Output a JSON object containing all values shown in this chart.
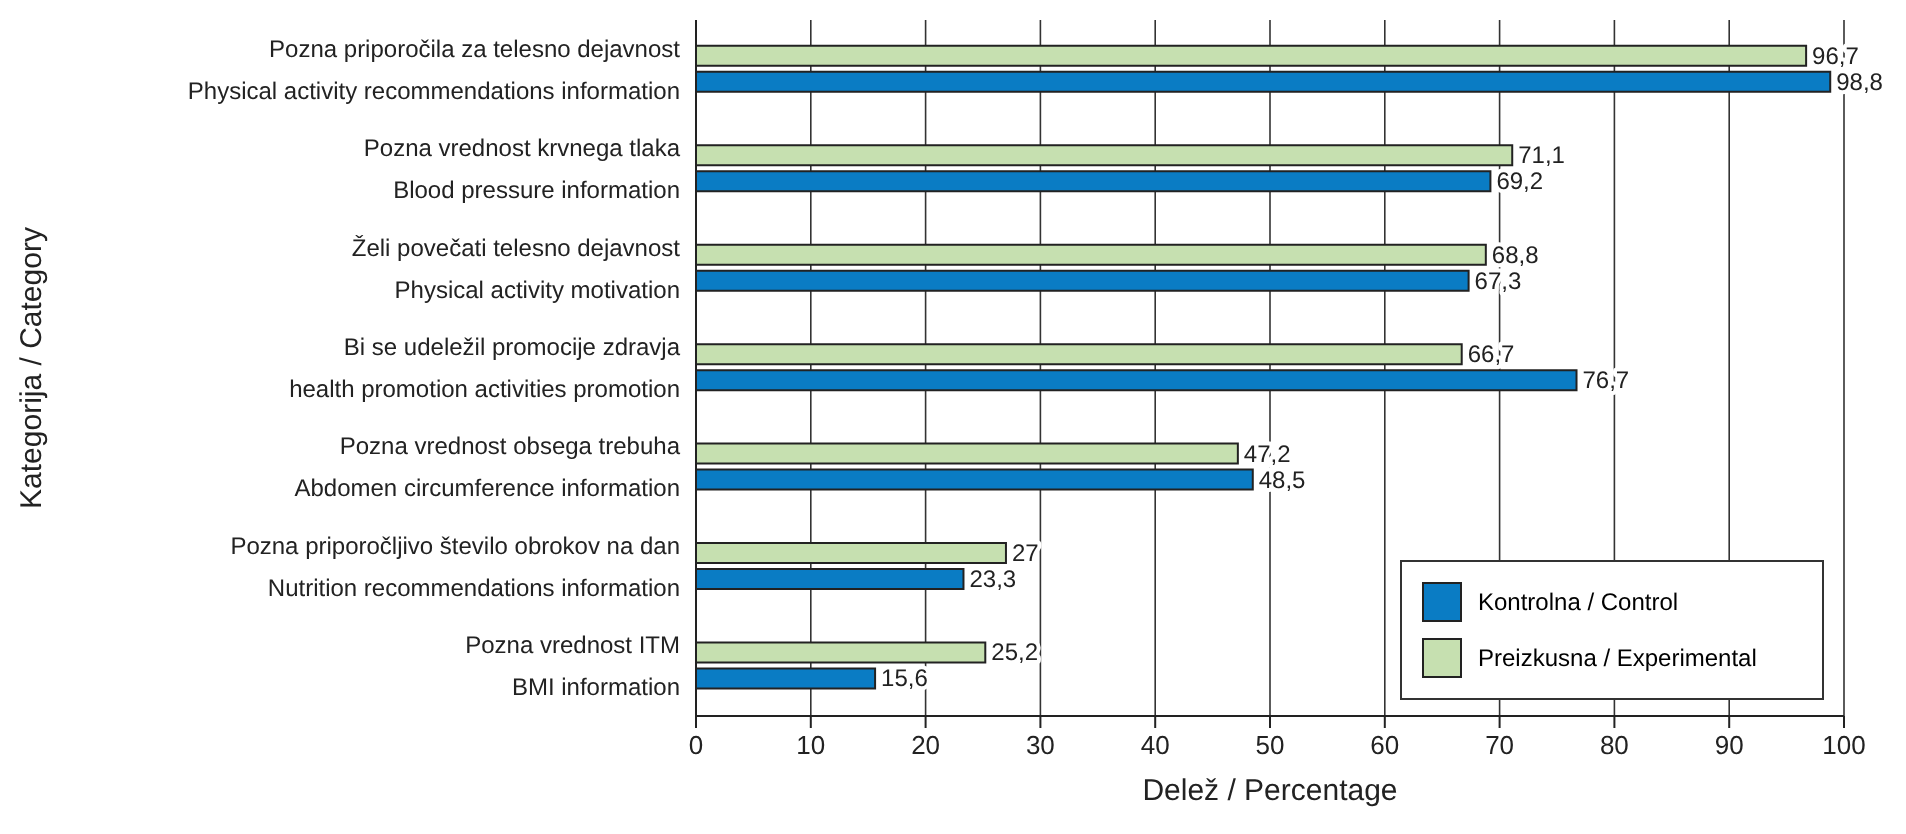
{
  "chart_data": {
    "type": "bar",
    "orientation": "horizontal",
    "xlabel": "Delež / Percentage",
    "ylabel": "Kategorija / Category",
    "categories": [
      "Pozna priporočila za telesno dejavnost\nPhysical activity recommendations information",
      "Pozna vrednost krvnega tlaka\nBlood pressure information",
      "Želi povečati telesno dejavnost\nPhysical activity motivation",
      "Bi se udeležil promocije zdravja\nhealth promotion activities promotion",
      "Pozna vrednost obsega trebuha\nAbdomen circumference information",
      "Pozna priporočljivo število obrokov na dan\nNutrition recommendations information",
      "Pozna vrednost ITM\nBMI information"
    ],
    "series": [
      {
        "name": "Kontrolna / Control",
        "color": "#0a7cc4",
        "values": [
          98.8,
          69.2,
          67.3,
          76.7,
          48.5,
          23.3,
          15.6
        ],
        "value_labels": [
          "98,8",
          "69,2",
          "67,3",
          "76,7",
          "48,5",
          "23,3",
          "15,6"
        ]
      },
      {
        "name": "Preizkusna / Experimental",
        "color": "#c6e0b0",
        "values": [
          96.7,
          71.1,
          68.8,
          66.7,
          47.2,
          27,
          25.2
        ],
        "value_labels": [
          "96,7",
          "71,1",
          "68,8",
          "66,7",
          "47,2",
          "27",
          "25,2"
        ]
      }
    ],
    "xlim": [
      0,
      100
    ],
    "xticks": [
      0,
      10,
      20,
      30,
      40,
      50,
      60,
      70,
      80,
      90,
      100
    ],
    "grid": "x",
    "legend": "bottom right"
  }
}
